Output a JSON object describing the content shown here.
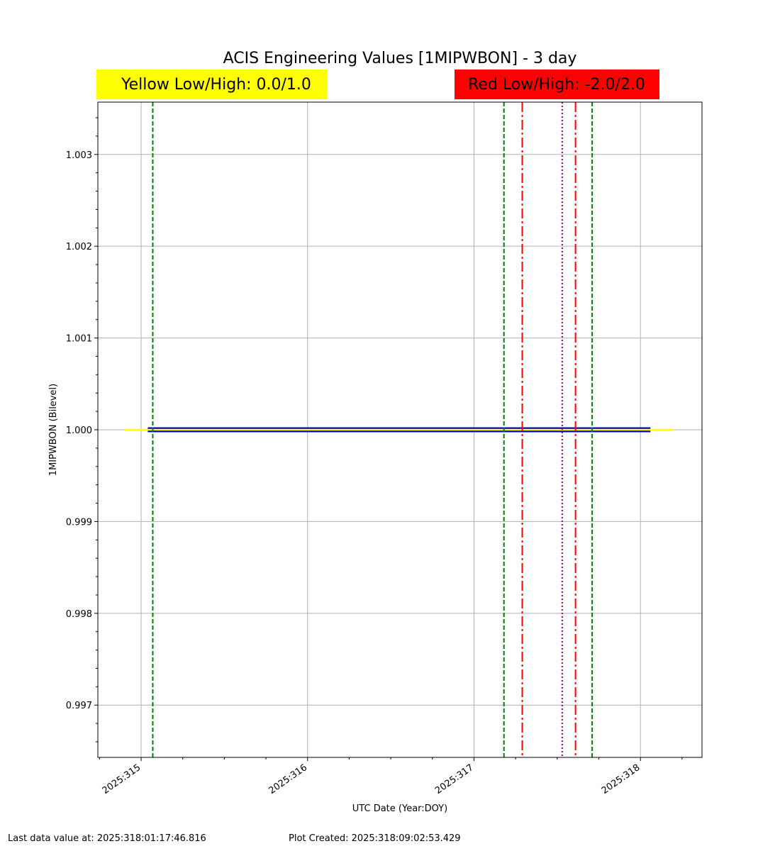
{
  "chart_data": {
    "type": "line",
    "title": "ACIS Engineering Values [1MIPWBON] - 3 day",
    "xlabel": "UTC Date (Year:DOY)",
    "ylabel": "1MIPWBON (Bilevel)",
    "xlim": [
      314.74,
      318.37
    ],
    "ylim": [
      0.99643,
      1.00357
    ],
    "grid": true,
    "x_ticks": [
      315,
      316,
      317,
      318
    ],
    "x_tick_labels": [
      "2025:315",
      "2025:316",
      "2025:317",
      "2025:318"
    ],
    "y_ticks": [
      0.997,
      0.998,
      0.999,
      1.0,
      1.001,
      1.002,
      1.003
    ],
    "y_tick_labels": [
      "0.997",
      "0.998",
      "0.999",
      "1.000",
      "1.001",
      "1.002",
      "1.003"
    ],
    "series": [
      {
        "color": "#0000cc",
        "x": [
          315.04,
          318.06
        ],
        "y": [
          1.0,
          1.0
        ]
      },
      {
        "color": "#ffff00",
        "x": [
          314.9,
          318.2
        ],
        "y": [
          1.0,
          1.0
        ]
      }
    ],
    "vertical_lines": [
      {
        "x": 315.07,
        "color": "#008000",
        "style": "dashed"
      },
      {
        "x": 317.18,
        "color": "#008000",
        "style": "dashed"
      },
      {
        "x": 317.29,
        "color": "#ff0000",
        "style": "dashdot"
      },
      {
        "x": 317.53,
        "color": "#800080",
        "style": "dotted"
      },
      {
        "x": 317.61,
        "color": "#ff0000",
        "style": "dashdot"
      },
      {
        "x": 317.71,
        "color": "#008000",
        "style": "dashed"
      }
    ],
    "limit_boxes": {
      "yellow": {
        "label": "Yellow Low/High: 0.0/1.0",
        "color": "#ffff00"
      },
      "red": {
        "label": "Red Low/High: -2.0/2.0",
        "color": "#ff0000"
      }
    }
  },
  "footer": {
    "last_data": "Last data value at: 2025:318:01:17:46.816",
    "plot_created": "Plot Created: 2025:318:09:02:53.429"
  }
}
